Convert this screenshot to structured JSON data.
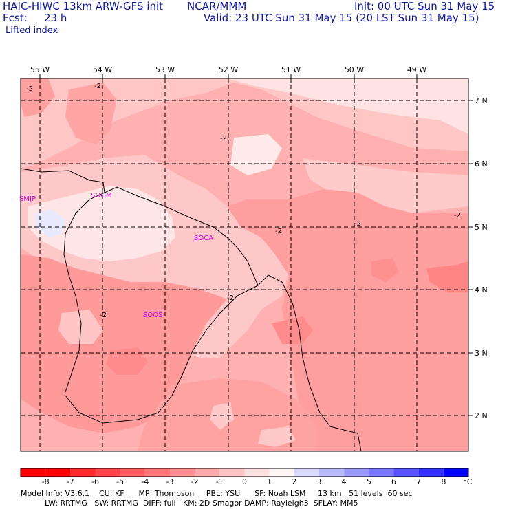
{
  "header": {
    "model": "HAIC-HIWC 13km ARW-GFS init",
    "org": "NCAR/MMM",
    "init": "Init: 00 UTC Sun 31 May 15",
    "fcst_label": "Fcst:",
    "fcst_value": "23 h",
    "valid": "Valid: 23 UTC Sun 31 May 15 (20 LST Sun 31 May 15)",
    "field": "Lifted index"
  },
  "map": {
    "lon_labels": [
      "55 W",
      "54 W",
      "53 W",
      "52 W",
      "51 W",
      "50 W",
      "49 W"
    ],
    "lat_labels": [
      "7 N",
      "6 N",
      "5 N",
      "4 N",
      "3 N",
      "2 N"
    ],
    "stations": [
      "SMJP",
      "SOGM",
      "SOCA",
      "SOOS"
    ],
    "contour_labels": [
      "-2",
      "-2",
      "-2",
      "-2",
      "-2",
      "-2",
      "-2",
      "-2"
    ]
  },
  "colorbar": {
    "ticks": [
      "-8",
      "-7",
      "-6",
      "-5",
      "-4",
      "-3",
      "-2",
      "-1",
      "0",
      "1",
      "2",
      "3",
      "4",
      "5",
      "6",
      "7",
      "8"
    ],
    "unit": "°C",
    "colors": [
      "#ff0000",
      "#ff2a2a",
      "#ff4545",
      "#ff5e5e",
      "#ff7676",
      "#ff8f8f",
      "#ffa8a8",
      "#ffc2c2",
      "#ffe0e0",
      "#fff4f4",
      "#d8d8ff",
      "#b8b8ff",
      "#9898ff",
      "#7878ff",
      "#5656ff",
      "#3030ff",
      "#0000ff"
    ]
  },
  "footer": {
    "line1": "Model Info: V3.6.1    CU: KF      MP: Thompson     PBL: YSU      SF: Noah LSM     13 km   51 levels  60 sec",
    "line2": "          LW: RRTMG   SW: RRTMG  DIFF: full   KM: 2D Smagor DAMP: Rayleigh3  SFLAY: MM5"
  }
}
